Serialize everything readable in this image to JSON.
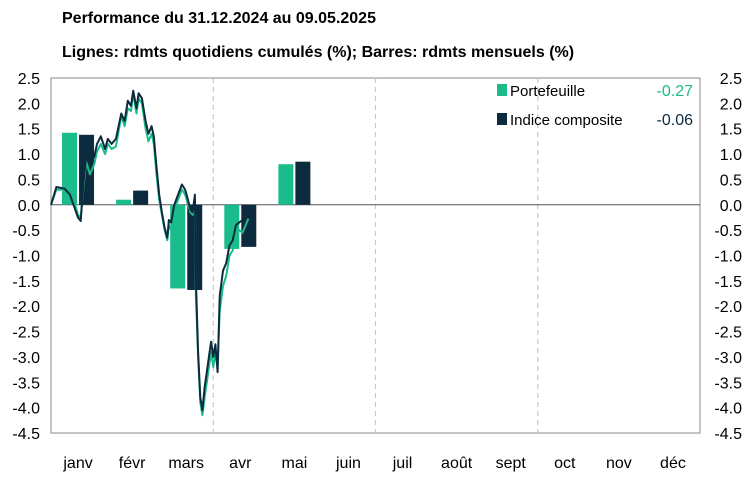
{
  "header": {
    "title": "Performance du 31.12.2024 au 09.05.2025",
    "subtitle": "Lignes: rdmts quotidiens cumulés (%); Barres: rdmts mensuels (%)"
  },
  "colors": {
    "portfolio": "#1abc8c",
    "index": "#0d2b3e",
    "grid": "#c8c8c8"
  },
  "chart_data": {
    "type": "bar",
    "categories": [
      "janv",
      "févr",
      "mars",
      "avr",
      "mai",
      "juin",
      "juil",
      "août",
      "sept",
      "oct",
      "nov",
      "déc"
    ],
    "ylim": [
      -4.5,
      2.5
    ],
    "yticks": [
      "2.5",
      "2.0",
      "1.5",
      "1.0",
      "0.5",
      "0.0",
      "-0.5",
      "-1.0",
      "-1.5",
      "-2.0",
      "-2.5",
      "-3.0",
      "-3.5",
      "-4.0",
      "-4.5"
    ],
    "grid": "dashed vertical lines at quarter boundaries",
    "legend_position": "top-right",
    "series": [
      {
        "name": "Portefeuille",
        "legend_value": "-0.27",
        "monthly_bars": [
          1.42,
          0.1,
          -1.65,
          -0.87,
          0.8
        ],
        "cumulative_daily": [
          [
            0.0,
            0.0
          ],
          [
            0.1,
            0.3
          ],
          [
            0.25,
            0.3
          ],
          [
            0.35,
            0.25
          ],
          [
            0.45,
            0.0
          ],
          [
            0.5,
            -0.2
          ],
          [
            0.55,
            -0.25
          ],
          [
            0.6,
            0.35
          ],
          [
            0.65,
            0.85
          ],
          [
            0.72,
            0.6
          ],
          [
            0.8,
            0.8
          ],
          [
            0.85,
            1.05
          ],
          [
            0.92,
            1.2
          ],
          [
            1.0,
            1.0
          ],
          [
            1.05,
            1.2
          ],
          [
            1.12,
            1.1
          ],
          [
            1.2,
            1.15
          ],
          [
            1.3,
            1.75
          ],
          [
            1.36,
            1.55
          ],
          [
            1.42,
            1.9
          ],
          [
            1.48,
            1.85
          ],
          [
            1.52,
            2.2
          ],
          [
            1.58,
            1.8
          ],
          [
            1.62,
            2.1
          ],
          [
            1.68,
            2.0
          ],
          [
            1.75,
            1.5
          ],
          [
            1.8,
            1.25
          ],
          [
            1.86,
            1.4
          ],
          [
            1.9,
            1.2
          ],
          [
            1.95,
            0.6
          ],
          [
            2.0,
            0.1
          ],
          [
            2.05,
            -0.2
          ],
          [
            2.1,
            -0.5
          ],
          [
            2.15,
            -0.7
          ],
          [
            2.18,
            -0.4
          ],
          [
            2.22,
            -0.5
          ],
          [
            2.28,
            -0.1
          ],
          [
            2.35,
            0.1
          ],
          [
            2.42,
            0.3
          ],
          [
            2.48,
            0.2
          ],
          [
            2.52,
            0.05
          ],
          [
            2.58,
            -0.15
          ],
          [
            2.62,
            -0.2
          ],
          [
            2.66,
            0.05
          ],
          [
            2.68,
            -1.8
          ],
          [
            2.72,
            -3.0
          ],
          [
            2.76,
            -3.9
          ],
          [
            2.8,
            -4.15
          ],
          [
            2.84,
            -3.8
          ],
          [
            2.88,
            -3.5
          ],
          [
            2.92,
            -3.2
          ],
          [
            2.96,
            -2.9
          ],
          [
            3.0,
            -3.2
          ],
          [
            3.04,
            -2.95
          ],
          [
            3.08,
            -3.15
          ],
          [
            3.12,
            -2.1
          ],
          [
            3.18,
            -1.6
          ],
          [
            3.24,
            -1.4
          ],
          [
            3.3,
            -1.0
          ],
          [
            3.36,
            -0.9
          ],
          [
            3.42,
            -0.6
          ],
          [
            3.48,
            -0.5
          ],
          [
            3.54,
            -0.55
          ],
          [
            3.6,
            -0.4
          ],
          [
            3.65,
            -0.27
          ]
        ]
      },
      {
        "name": "Indice composite",
        "legend_value": "-0.06",
        "monthly_bars": [
          1.38,
          0.28,
          -1.68,
          -0.83,
          0.85
        ],
        "cumulative_daily": [
          [
            0.0,
            0.0
          ],
          [
            0.1,
            0.35
          ],
          [
            0.25,
            0.32
          ],
          [
            0.35,
            0.2
          ],
          [
            0.45,
            -0.1
          ],
          [
            0.5,
            -0.25
          ],
          [
            0.55,
            -0.32
          ],
          [
            0.6,
            0.45
          ],
          [
            0.65,
            0.95
          ],
          [
            0.72,
            0.8
          ],
          [
            0.8,
            0.95
          ],
          [
            0.85,
            1.2
          ],
          [
            0.92,
            1.35
          ],
          [
            1.0,
            1.1
          ],
          [
            1.05,
            1.3
          ],
          [
            1.12,
            1.2
          ],
          [
            1.2,
            1.3
          ],
          [
            1.3,
            1.8
          ],
          [
            1.36,
            1.65
          ],
          [
            1.42,
            2.05
          ],
          [
            1.48,
            1.95
          ],
          [
            1.52,
            2.25
          ],
          [
            1.58,
            1.9
          ],
          [
            1.62,
            2.2
          ],
          [
            1.68,
            2.1
          ],
          [
            1.75,
            1.65
          ],
          [
            1.8,
            1.4
          ],
          [
            1.86,
            1.55
          ],
          [
            1.9,
            1.35
          ],
          [
            1.95,
            0.75
          ],
          [
            2.0,
            0.2
          ],
          [
            2.05,
            -0.15
          ],
          [
            2.1,
            -0.45
          ],
          [
            2.15,
            -0.65
          ],
          [
            2.18,
            -0.3
          ],
          [
            2.22,
            -0.35
          ],
          [
            2.28,
            0.0
          ],
          [
            2.35,
            0.2
          ],
          [
            2.42,
            0.4
          ],
          [
            2.48,
            0.3
          ],
          [
            2.52,
            0.15
          ],
          [
            2.58,
            -0.1
          ],
          [
            2.62,
            -0.15
          ],
          [
            2.66,
            0.2
          ],
          [
            2.68,
            -1.5
          ],
          [
            2.72,
            -2.9
          ],
          [
            2.76,
            -3.8
          ],
          [
            2.8,
            -4.05
          ],
          [
            2.84,
            -3.6
          ],
          [
            2.88,
            -3.3
          ],
          [
            2.92,
            -3.0
          ],
          [
            2.96,
            -2.7
          ],
          [
            3.0,
            -3.0
          ],
          [
            3.04,
            -2.75
          ],
          [
            3.08,
            -3.3
          ],
          [
            3.12,
            -1.8
          ],
          [
            3.18,
            -1.3
          ],
          [
            3.24,
            -1.15
          ],
          [
            3.3,
            -0.8
          ],
          [
            3.36,
            -0.7
          ],
          [
            3.42,
            -0.4
          ],
          [
            3.48,
            -0.35
          ],
          [
            3.54,
            -0.3
          ],
          [
            3.6,
            -0.15
          ],
          [
            3.65,
            -0.06
          ]
        ]
      }
    ]
  }
}
